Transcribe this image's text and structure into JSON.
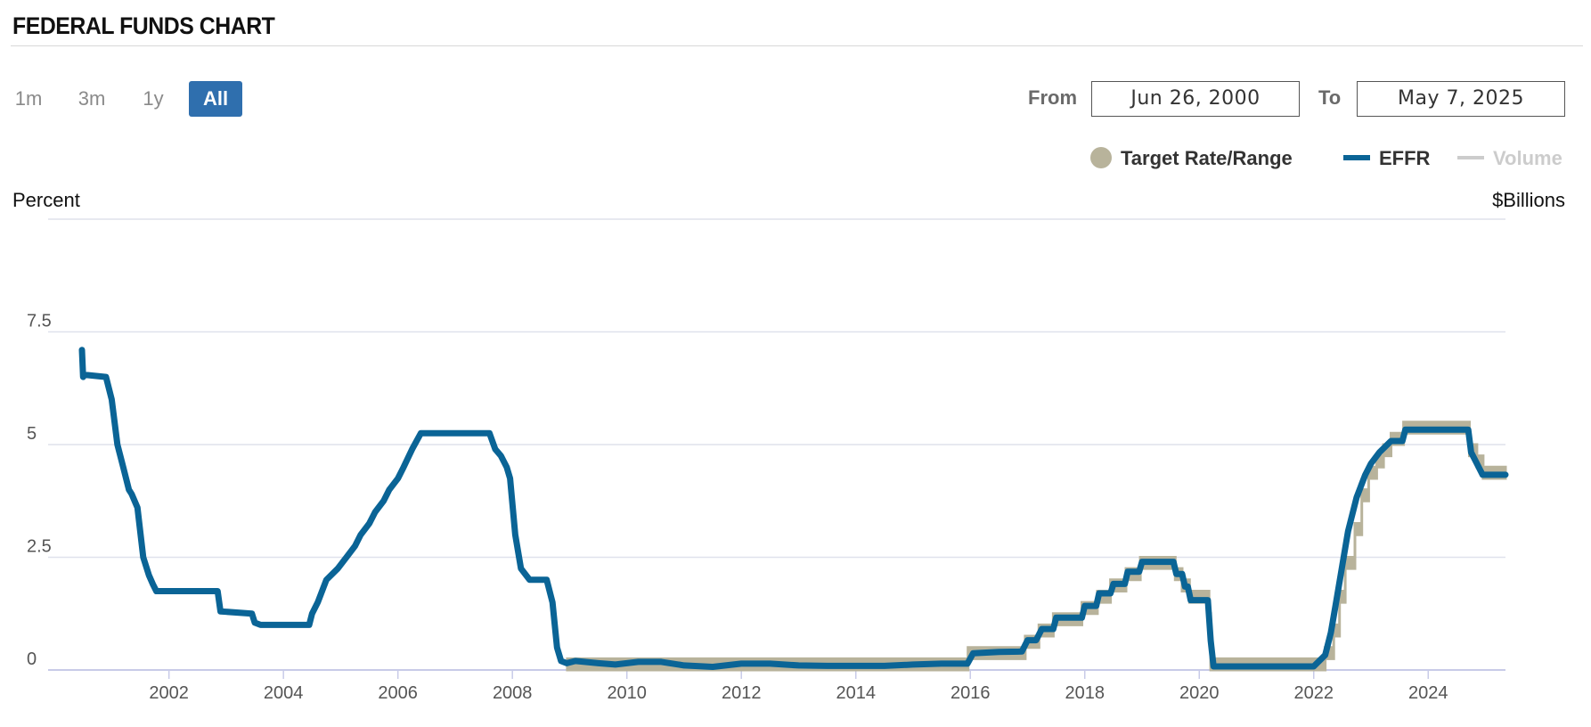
{
  "header": {
    "title": "FEDERAL FUNDS CHART"
  },
  "range_buttons": [
    {
      "label": "1m",
      "active": false
    },
    {
      "label": "3m",
      "active": false
    },
    {
      "label": "1y",
      "active": false
    },
    {
      "label": "All",
      "active": true
    }
  ],
  "date_range": {
    "from_label": "From",
    "from_value": "Jun 26, 2000",
    "to_label": "To",
    "to_value": "May 7, 2025"
  },
  "legend": {
    "target": {
      "label": "Target Rate/Range",
      "color": "#b8b39b"
    },
    "effr": {
      "label": "EFFR",
      "color": "#0a6496"
    },
    "volume": {
      "label": "Volume",
      "color": "#cccccc"
    }
  },
  "chart_data": {
    "type": "line",
    "ylabel": "Percent",
    "y2label": "$Billions",
    "ylim": [
      0,
      10
    ],
    "yticks": [
      "0",
      "2.5",
      "5",
      "7.5"
    ],
    "xticks": [
      "2002",
      "2004",
      "2006",
      "2008",
      "2010",
      "2012",
      "2014",
      "2016",
      "2018",
      "2020",
      "2022",
      "2024"
    ],
    "xlim": [
      2000.48,
      2025.35
    ],
    "grid": true,
    "legend_position": "top-right",
    "series": [
      {
        "name": "EFFR",
        "color": "#0a6496",
        "x": [
          2000.48,
          2000.5,
          2000.52,
          2000.9,
          2001.0,
          2001.05,
          2001.1,
          2001.2,
          2001.3,
          2001.35,
          2001.45,
          2001.55,
          2001.65,
          2001.72,
          2001.78,
          2001.85,
          2001.95,
          2002.5,
          2002.85,
          2002.9,
          2003.45,
          2003.5,
          2003.6,
          2004.45,
          2004.5,
          2004.6,
          2004.75,
          2004.95,
          2005.1,
          2005.25,
          2005.35,
          2005.5,
          2005.6,
          2005.75,
          2005.85,
          2006.0,
          2006.1,
          2006.25,
          2006.4,
          2006.5,
          2007.6,
          2007.7,
          2007.8,
          2007.9,
          2007.96,
          2008.05,
          2008.15,
          2008.3,
          2008.6,
          2008.7,
          2008.78,
          2008.85,
          2008.95,
          2009.1,
          2009.5,
          2009.8,
          2010.2,
          2010.6,
          2011.0,
          2011.5,
          2012.0,
          2012.5,
          2013.0,
          2013.5,
          2014.0,
          2014.5,
          2015.0,
          2015.5,
          2015.95,
          2016.05,
          2016.5,
          2016.9,
          2017.0,
          2017.15,
          2017.25,
          2017.45,
          2017.5,
          2017.95,
          2018.0,
          2018.2,
          2018.25,
          2018.45,
          2018.5,
          2018.7,
          2018.75,
          2018.95,
          2019.0,
          2019.55,
          2019.6,
          2019.7,
          2019.75,
          2019.8,
          2019.85,
          2020.15,
          2020.2,
          2020.25,
          2021.0,
          2022.0,
          2022.2,
          2022.3,
          2022.4,
          2022.5,
          2022.6,
          2022.75,
          2022.9,
          2023.0,
          2023.15,
          2023.35,
          2023.55,
          2023.6,
          2024.7,
          2024.75,
          2024.85,
          2024.95,
          2025.35
        ],
        "y": [
          7.1,
          6.5,
          6.55,
          6.5,
          6.0,
          5.5,
          5.0,
          4.5,
          4.0,
          3.9,
          3.6,
          2.5,
          2.1,
          1.9,
          1.75,
          1.75,
          1.75,
          1.75,
          1.75,
          1.3,
          1.25,
          1.05,
          1.0,
          1.0,
          1.25,
          1.5,
          2.0,
          2.25,
          2.5,
          2.75,
          3.0,
          3.25,
          3.5,
          3.75,
          4.0,
          4.25,
          4.5,
          4.9,
          5.25,
          5.25,
          5.25,
          4.9,
          4.75,
          4.5,
          4.25,
          3.0,
          2.25,
          2.0,
          2.0,
          1.5,
          0.5,
          0.2,
          0.15,
          0.2,
          0.15,
          0.12,
          0.18,
          0.18,
          0.1,
          0.07,
          0.14,
          0.14,
          0.1,
          0.09,
          0.09,
          0.09,
          0.12,
          0.14,
          0.14,
          0.37,
          0.4,
          0.41,
          0.66,
          0.66,
          0.91,
          0.91,
          1.16,
          1.16,
          1.42,
          1.42,
          1.7,
          1.7,
          1.91,
          1.91,
          2.18,
          2.18,
          2.4,
          2.4,
          2.13,
          2.13,
          1.85,
          1.85,
          1.55,
          1.55,
          0.65,
          0.08,
          0.08,
          0.08,
          0.33,
          0.83,
          1.58,
          2.33,
          3.08,
          3.83,
          4.33,
          4.58,
          4.83,
          5.08,
          5.08,
          5.33,
          5.33,
          4.83,
          4.58,
          4.33,
          4.33
        ]
      },
      {
        "name": "Target Rate/Range",
        "color": "#b8b39b",
        "x": [
          2008.96,
          2015.96,
          2015.96,
          2016.96,
          2016.96,
          2017.2,
          2017.2,
          2017.45,
          2017.45,
          2017.95,
          2017.95,
          2018.22,
          2018.22,
          2018.45,
          2018.45,
          2018.72,
          2018.72,
          2018.97,
          2018.97,
          2019.58,
          2019.58,
          2019.7,
          2019.7,
          2019.83,
          2019.83,
          2020.17,
          2020.17,
          2020.2,
          2020.2,
          2022.2,
          2022.2,
          2022.35,
          2022.35,
          2022.45,
          2022.45,
          2022.55,
          2022.55,
          2022.72,
          2022.72,
          2022.84,
          2022.84,
          2022.96,
          2022.96,
          2023.1,
          2023.1,
          2023.22,
          2023.22,
          2023.35,
          2023.35,
          2023.57,
          2023.57,
          2024.72,
          2024.72,
          2024.85,
          2024.85,
          2024.96,
          2024.96,
          2025.35
        ],
        "y": [
          0.25,
          0.25,
          0.5,
          0.5,
          0.75,
          0.75,
          1.0,
          1.0,
          1.25,
          1.25,
          1.5,
          1.5,
          1.75,
          1.75,
          2.0,
          2.0,
          2.25,
          2.25,
          2.5,
          2.5,
          2.25,
          2.25,
          2.0,
          2.0,
          1.75,
          1.75,
          1.25,
          1.25,
          0.25,
          0.25,
          0.5,
          0.5,
          1.0,
          1.0,
          1.75,
          1.75,
          2.5,
          2.5,
          3.25,
          3.25,
          4.0,
          4.0,
          4.5,
          4.5,
          4.75,
          4.75,
          5.0,
          5.0,
          5.25,
          5.25,
          5.5,
          5.5,
          5.0,
          5.0,
          4.75,
          4.75,
          4.5,
          4.5
        ],
        "y_lower": [
          0.0,
          0.0,
          0.25,
          0.25,
          0.5,
          0.5,
          0.75,
          0.75,
          1.0,
          1.0,
          1.25,
          1.25,
          1.5,
          1.5,
          1.75,
          1.75,
          2.0,
          2.0,
          2.25,
          2.25,
          2.0,
          2.0,
          1.75,
          1.75,
          1.5,
          1.5,
          1.0,
          1.0,
          0.0,
          0.0,
          0.25,
          0.25,
          0.75,
          0.75,
          1.5,
          1.5,
          2.25,
          2.25,
          3.0,
          3.0,
          3.75,
          3.75,
          4.25,
          4.25,
          4.5,
          4.5,
          4.75,
          4.75,
          5.0,
          5.0,
          5.25,
          5.25,
          4.75,
          4.75,
          4.5,
          4.5,
          4.25,
          4.25
        ]
      }
    ]
  }
}
